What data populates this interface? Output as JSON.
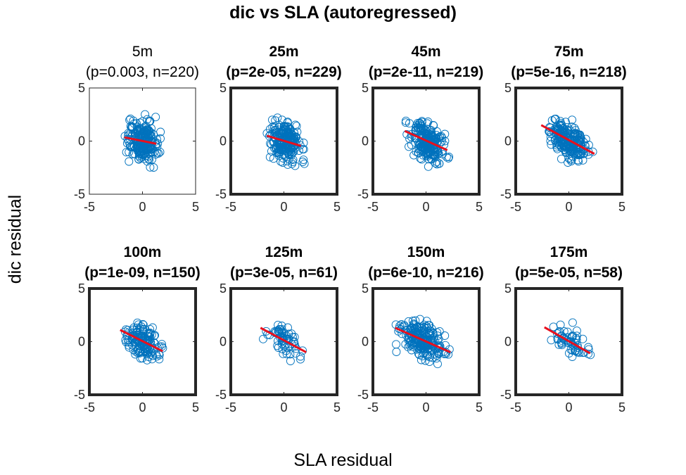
{
  "figure": {
    "title": "dic vs SLA (autoregressed)",
    "xlabel": "SLA residual",
    "ylabel": "dic residual"
  },
  "style": {
    "marker_color": "#0072BD",
    "fit_color": "#E8101E",
    "axis_color": "#262626",
    "tick_label_color": "#262626"
  },
  "chart_data": [
    {
      "type": "scatter",
      "depth": "5m",
      "title": "5m",
      "subtitle": "(p=0.003, n=220)",
      "title_bold": false,
      "p_value": 0.003,
      "n": 220,
      "xlim": [
        -5,
        5
      ],
      "ylim": [
        -5,
        5
      ],
      "xticks": [
        -5,
        0,
        5
      ],
      "yticks": [
        -5,
        0,
        5
      ],
      "x_range": [
        -1.9,
        1.9
      ],
      "y_range": [
        -2.8,
        2.6
      ],
      "fit_line": {
        "x": [
          -1.7,
          1.3
        ],
        "y": [
          0.35,
          -0.25
        ]
      }
    },
    {
      "type": "scatter",
      "depth": "25m",
      "title": "25m",
      "subtitle": "(p=2e-05, n=229)",
      "title_bold": true,
      "p_value": 2e-05,
      "n": 229,
      "xlim": [
        -5,
        5
      ],
      "ylim": [
        -5,
        5
      ],
      "xticks": [
        -5,
        0,
        5
      ],
      "yticks": [
        -5,
        0,
        5
      ],
      "x_range": [
        -1.8,
        2.0
      ],
      "y_range": [
        -2.6,
        2.5
      ],
      "fit_line": {
        "x": [
          -1.6,
          1.6
        ],
        "y": [
          0.5,
          -0.45
        ]
      }
    },
    {
      "type": "scatter",
      "depth": "45m",
      "title": "45m",
      "subtitle": "(p=2e-11, n=219)",
      "title_bold": true,
      "p_value": 2e-11,
      "n": 219,
      "xlim": [
        -5,
        5
      ],
      "ylim": [
        -5,
        5
      ],
      "xticks": [
        -5,
        0,
        5
      ],
      "yticks": [
        -5,
        0,
        5
      ],
      "x_range": [
        -2.0,
        2.2
      ],
      "y_range": [
        -2.6,
        2.5
      ],
      "fit_line": {
        "x": [
          -2.0,
          2.0
        ],
        "y": [
          0.95,
          -0.85
        ]
      }
    },
    {
      "type": "scatter",
      "depth": "75m",
      "title": "75m",
      "subtitle": "(p=5e-16, n=218)",
      "title_bold": true,
      "p_value": 5e-16,
      "n": 218,
      "xlim": [
        -5,
        5
      ],
      "ylim": [
        -5,
        5
      ],
      "xticks": [
        -5,
        0,
        5
      ],
      "yticks": [
        -5,
        0,
        5
      ],
      "x_range": [
        -2.4,
        2.4
      ],
      "y_range": [
        -2.4,
        2.3
      ],
      "fit_line": {
        "x": [
          -2.6,
          2.4
        ],
        "y": [
          1.5,
          -1.2
        ]
      }
    },
    {
      "type": "scatter",
      "depth": "100m",
      "title": "100m",
      "subtitle": "(p=1e-09, n=150)",
      "title_bold": true,
      "p_value": 1e-09,
      "n": 150,
      "xlim": [
        -5,
        5
      ],
      "ylim": [
        -5,
        5
      ],
      "xticks": [
        -5,
        0,
        5
      ],
      "yticks": [
        -5,
        0,
        5
      ],
      "x_range": [
        -2.2,
        2.2
      ],
      "y_range": [
        -2.4,
        2.2
      ],
      "fit_line": {
        "x": [
          -2.1,
          1.9
        ],
        "y": [
          1.1,
          -0.9
        ]
      }
    },
    {
      "type": "scatter",
      "depth": "125m",
      "title": "125m",
      "subtitle": "(p=3e-05, n=61)",
      "title_bold": true,
      "p_value": 3e-05,
      "n": 61,
      "xlim": [
        -5,
        5
      ],
      "ylim": [
        -5,
        5
      ],
      "xticks": [
        -5,
        0,
        5
      ],
      "yticks": [
        -5,
        0,
        5
      ],
      "x_range": [
        -2.2,
        2.2
      ],
      "y_range": [
        -2.0,
        2.0
      ],
      "fit_line": {
        "x": [
          -2.2,
          2.1
        ],
        "y": [
          1.3,
          -1.0
        ]
      }
    },
    {
      "type": "scatter",
      "depth": "150m",
      "title": "150m",
      "subtitle": "(p=6e-10, n=216)",
      "title_bold": true,
      "p_value": 6e-10,
      "n": 216,
      "xlim": [
        -5,
        5
      ],
      "ylim": [
        -5,
        5
      ],
      "xticks": [
        -5,
        0,
        5
      ],
      "yticks": [
        -5,
        0,
        5
      ],
      "x_range": [
        -3.0,
        2.4
      ],
      "y_range": [
        -2.6,
        2.2
      ],
      "fit_line": {
        "x": [
          -2.9,
          2.3
        ],
        "y": [
          1.3,
          -1.0
        ]
      }
    },
    {
      "type": "scatter",
      "depth": "175m",
      "title": "175m",
      "subtitle": "(p=5e-05, n=58)",
      "title_bold": true,
      "p_value": 5e-05,
      "n": 58,
      "xlim": [
        -5,
        5
      ],
      "ylim": [
        -5,
        5
      ],
      "xticks": [
        -5,
        0,
        5
      ],
      "yticks": [
        -5,
        0,
        5
      ],
      "x_range": [
        -2.3,
        2.3
      ],
      "y_range": [
        -2.0,
        2.2
      ],
      "fit_line": {
        "x": [
          -2.3,
          2.0
        ],
        "y": [
          1.35,
          -1.1
        ]
      }
    }
  ]
}
